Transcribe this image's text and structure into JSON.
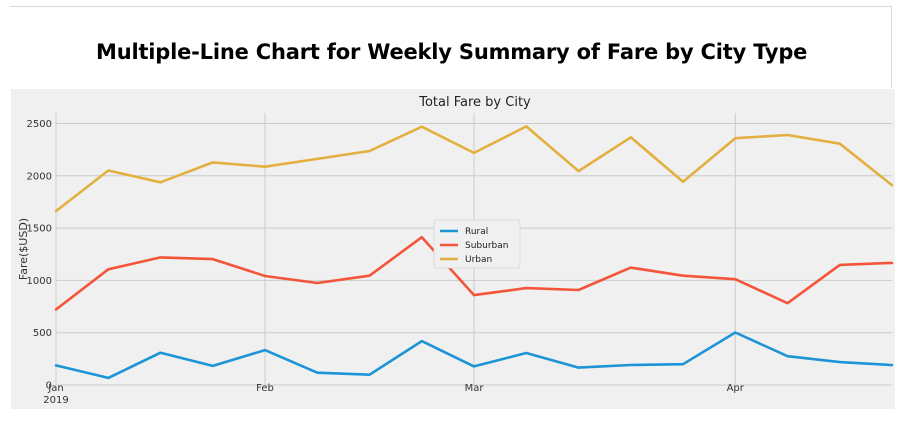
{
  "page": {
    "heading": "Multiple-Line Chart for Weekly Summary of Fare by City Type"
  },
  "chart_data": {
    "type": "line",
    "title": "Total Fare by City",
    "xlabel": "",
    "ylabel": "Fare($USD)",
    "x": [
      "2019-01-06",
      "2019-01-13",
      "2019-01-20",
      "2019-01-27",
      "2019-02-03",
      "2019-02-10",
      "2019-02-17",
      "2019-02-24",
      "2019-03-03",
      "2019-03-10",
      "2019-03-17",
      "2019-03-24",
      "2019-03-31",
      "2019-04-07",
      "2019-04-14",
      "2019-04-21",
      "2019-04-28"
    ],
    "xlim": [
      "2019-01-06",
      "2019-04-28"
    ],
    "ylim": [
      0,
      2600
    ],
    "yticks": [
      0,
      500,
      1000,
      1500,
      2000,
      2500
    ],
    "xticks": [
      {
        "date": "2019-01-06",
        "label": "Jan",
        "sublabel": "2019"
      },
      {
        "date": "2019-02-03",
        "label": "Feb",
        "sublabel": ""
      },
      {
        "date": "2019-03-03",
        "label": "Mar",
        "sublabel": ""
      },
      {
        "date": "2019-04-07",
        "label": "Apr",
        "sublabel": ""
      }
    ],
    "grid": true,
    "legend_position": "center",
    "series": [
      {
        "name": "Rural",
        "color": "#1c94d6",
        "values": [
          187,
          68,
          309,
          183,
          334,
          118,
          98,
          420,
          178,
          306,
          166,
          191,
          199,
          502,
          275,
          219,
          190
        ]
      },
      {
        "name": "Suburban",
        "color": "#f4553a",
        "values": [
          722,
          1106,
          1220,
          1203,
          1042,
          975,
          1045,
          1413,
          859,
          926,
          908,
          1122,
          1045,
          1011,
          782,
          1148,
          1167
        ]
      },
      {
        "name": "Urban",
        "color": "#e3b040",
        "values": [
          1662,
          2050,
          1938,
          2128,
          2087,
          2161,
          2237,
          2469,
          2219,
          2472,
          2045,
          2368,
          1943,
          2359,
          2390,
          2307,
          1910
        ]
      }
    ]
  }
}
